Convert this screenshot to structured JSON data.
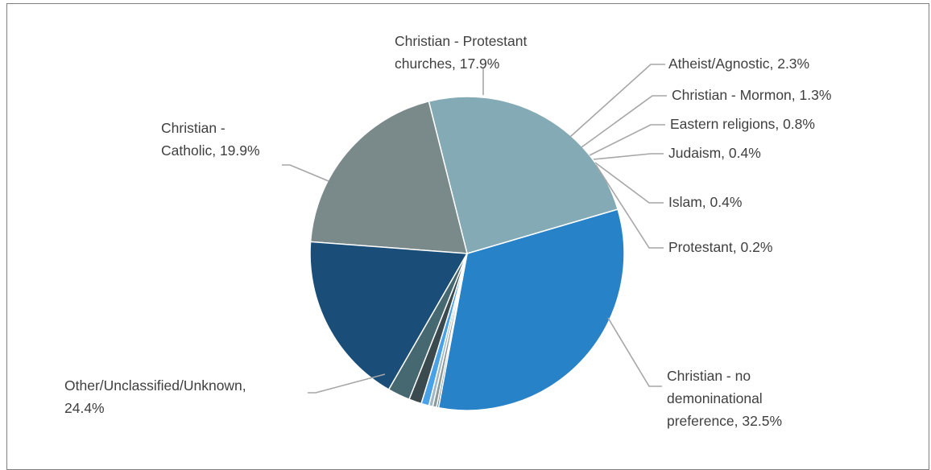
{
  "chart_data": {
    "type": "pie",
    "title": "",
    "slices": [
      {
        "label": "Christian - no demoninational preference",
        "label_lines": [
          "Christian - no",
          "demoninational",
          "preference, 32.5%"
        ],
        "value": 32.5,
        "color": "#2882c8"
      },
      {
        "label": "Other/Unclassified/Unknown",
        "label_lines": [
          "Other/Unclassified/Unknown,",
          "24.4%"
        ],
        "value": 24.4,
        "color": "#84abb5"
      },
      {
        "label": "Christian - Catholic",
        "label_lines": [
          "Christian -",
          "Catholic, 19.9%"
        ],
        "value": 19.9,
        "color": "#7a898a"
      },
      {
        "label": "Christian - Protestant churches",
        "label_lines": [
          "Christian - Protestant",
          "churches, 17.9%"
        ],
        "value": 17.9,
        "color": "#1a4e78"
      },
      {
        "label": "Atheist/Agnostic",
        "label_lines": [
          "Atheist/Agnostic, 2.3%"
        ],
        "value": 2.3,
        "color": "#466870"
      },
      {
        "label": "Christian - Mormon",
        "label_lines": [
          "Christian  - Mormon, 1.3%"
        ],
        "value": 1.3,
        "color": "#3a4a4e"
      },
      {
        "label": "Eastern religions",
        "label_lines": [
          "Eastern religions, 0.8%"
        ],
        "value": 0.8,
        "color": "#4aa2e6"
      },
      {
        "label": "Judaism",
        "label_lines": [
          "Judaism, 0.4%"
        ],
        "value": 0.4,
        "color": "#9fb8c4"
      },
      {
        "label": "Islam",
        "label_lines": [
          "Islam, 0.4%"
        ],
        "value": 0.4,
        "color": "#8c9a9c"
      },
      {
        "label": "Protestant",
        "label_lines": [
          "Protestant, 0.2%"
        ],
        "value": 0.2,
        "color": "#5b7f93"
      }
    ],
    "start_direction": "clockwise from the lower-right of the Protestant slice",
    "legend": "none (data labels with leader lines)",
    "leader_line_color": "#a6a6a6"
  }
}
